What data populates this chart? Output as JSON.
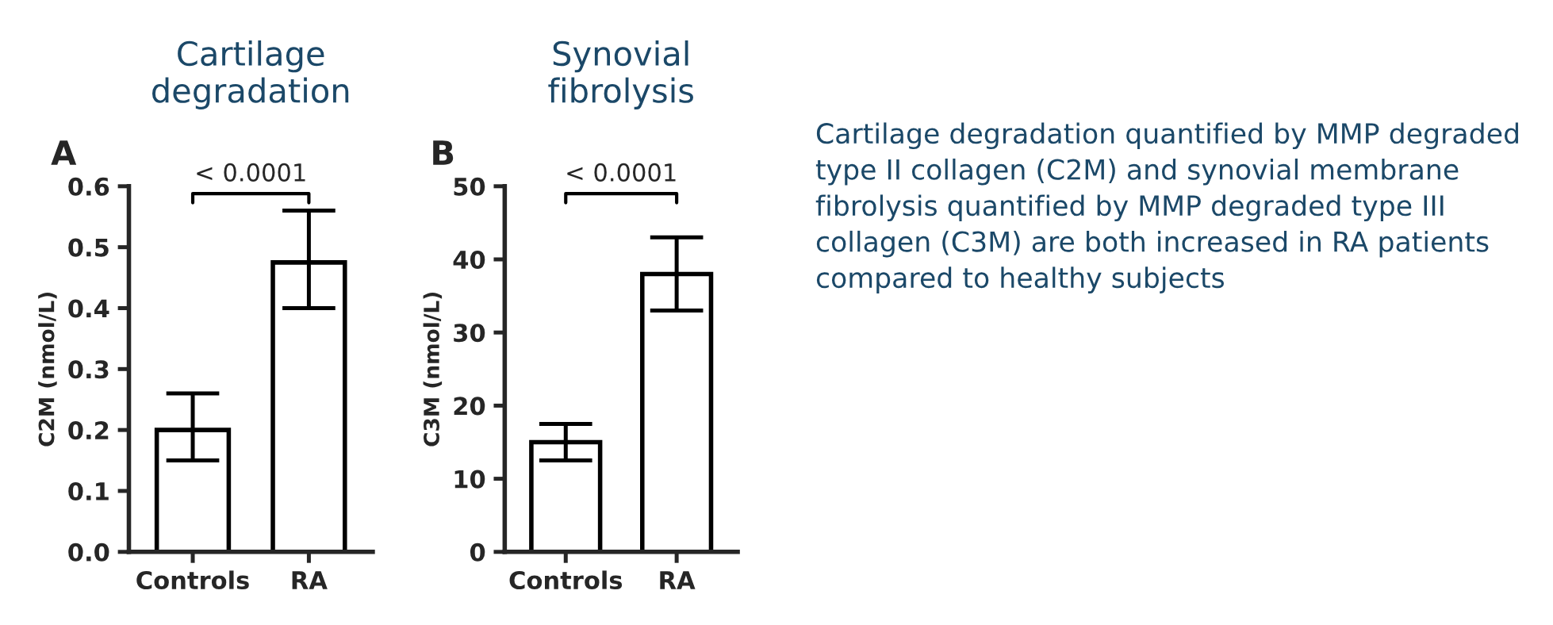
{
  "chart_data": [
    {
      "type": "bar",
      "title": "Cartilage\ndegradation",
      "ylabel": "C2M (nmol/L)",
      "categories": [
        "Controls",
        "RA"
      ],
      "values": [
        0.2,
        0.475
      ],
      "errors": [
        [
          0.15,
          0.26
        ],
        [
          0.4,
          0.56
        ]
      ],
      "color": "#ffffff",
      "ylim": [
        0,
        0.6
      ],
      "yticks": [
        {
          "value": 0,
          "label": "0.0"
        },
        0.1,
        0.2,
        0.3,
        0.4,
        0.5,
        0.6
      ],
      "grid": false,
      "annotations": [
        "A",
        "< 0.0001"
      ]
    },
    {
      "type": "bar",
      "title": "Synovial\nfibrolysis",
      "ylabel": "C3M (nmol/L)",
      "categories": [
        "Controls",
        "RA"
      ],
      "values": [
        15,
        38
      ],
      "errors": [
        [
          12.5,
          17.5
        ],
        [
          33,
          43
        ]
      ],
      "color": "#ffffff",
      "ylim": [
        0,
        50
      ],
      "yticks": [
        0,
        10,
        20,
        30,
        40,
        50
      ],
      "grid": false,
      "annotations": [
        "B",
        "< 0.0001"
      ]
    },
    {
      "type": "other",
      "annotations": [
        "Cartilage degradation quantified by MMP degraded type II collagen (C2M) and synovial membrane fibrolysis quantified by MMP degraded type III collagen (C3M) are both increased in RA patients compared to healthy subjects"
      ]
    }
  ]
}
